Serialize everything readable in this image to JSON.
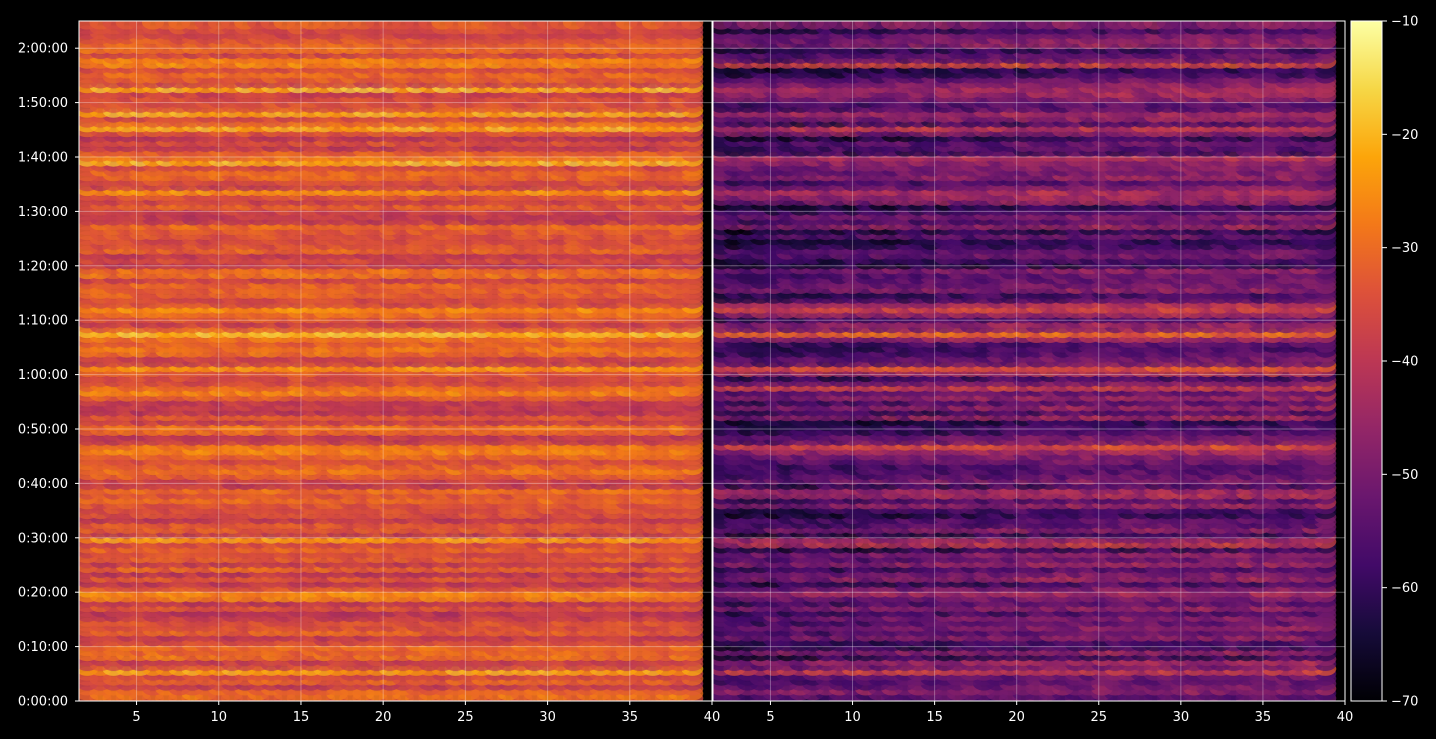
{
  "chart_data": {
    "type": "heatmap",
    "panels": [
      {
        "name": "",
        "xlim": [
          1.5,
          40
        ],
        "x_ticks": [
          5,
          10,
          15,
          20,
          25,
          30,
          35,
          40
        ],
        "intensity": "high",
        "level_range": [
          -48,
          -20
        ]
      },
      {
        "name": "",
        "xlim": [
          1.5,
          40
        ],
        "x_ticks": [
          5,
          10,
          15,
          20,
          25,
          30,
          35,
          40
        ],
        "intensity": "low",
        "level_range": [
          -70,
          -32
        ]
      }
    ],
    "y_axis": {
      "label": "",
      "range_seconds": [
        0,
        7500
      ],
      "tick_seconds": [
        0,
        600,
        1200,
        1800,
        2400,
        3000,
        3600,
        4200,
        4800,
        5400,
        6000,
        6600,
        7200
      ],
      "tick_labels": [
        "0:00:00",
        "0:10:00",
        "0:20:00",
        "0:30:00",
        "0:40:00",
        "0:50:00",
        "1:00:00",
        "1:10:00",
        "1:20:00",
        "1:30:00",
        "1:40:00",
        "1:50:00",
        "2:00:00"
      ]
    },
    "bright_rows_seconds": [
      120,
      360,
      1200,
      1800,
      2340,
      2820,
      3480,
      3690,
      4080,
      4350,
      5640,
      5970,
      6340,
      6510,
      6780,
      7070,
      7490
    ],
    "colorbar": {
      "colormap": "inferno",
      "range": [
        -70,
        -10
      ],
      "ticks": [
        -70,
        -60,
        -50,
        -40,
        -30,
        -20,
        -10
      ],
      "tick_labels": [
        "−70",
        "−60",
        "−50",
        "−40",
        "−30",
        "−20",
        "−10"
      ]
    },
    "grid": true,
    "background": "#000000",
    "axis_color": "#ffffff"
  }
}
